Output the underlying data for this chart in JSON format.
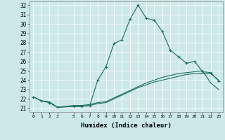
{
  "xlabel": "Humidex (Indice chaleur)",
  "background_color": "#cce8e8",
  "grid_color": "#b8d8d8",
  "line_color": "#1a6e60",
  "xlim": [
    -0.5,
    23.5
  ],
  "ylim": [
    20.6,
    32.4
  ],
  "yticks": [
    21,
    22,
    23,
    24,
    25,
    26,
    27,
    28,
    29,
    30,
    31,
    32
  ],
  "xticks": [
    0,
    1,
    2,
    3,
    5,
    6,
    7,
    8,
    9,
    10,
    11,
    12,
    13,
    14,
    15,
    16,
    17,
    18,
    19,
    20,
    21,
    22,
    23
  ],
  "series1_x": [
    0,
    1,
    2,
    3,
    5,
    6,
    7,
    8,
    9,
    10,
    11,
    12,
    13,
    14,
    15,
    16,
    17,
    18,
    19,
    20,
    21,
    22,
    23
  ],
  "series1_y": [
    22.2,
    21.8,
    21.6,
    21.1,
    21.2,
    21.2,
    21.3,
    24.0,
    25.4,
    27.9,
    28.3,
    30.5,
    32.0,
    30.6,
    30.4,
    29.2,
    27.2,
    26.5,
    25.8,
    26.0,
    24.9,
    24.8,
    23.9
  ],
  "series2_x": [
    0,
    1,
    2,
    3,
    5,
    6,
    7,
    8,
    9,
    10,
    11,
    12,
    13,
    14,
    15,
    16,
    17,
    18,
    19,
    20,
    21,
    22,
    23
  ],
  "series2_y": [
    22.2,
    21.8,
    21.7,
    21.1,
    21.3,
    21.3,
    21.4,
    21.6,
    21.7,
    22.1,
    22.5,
    22.9,
    23.3,
    23.7,
    24.0,
    24.3,
    24.5,
    24.7,
    24.8,
    24.9,
    25.0,
    23.7,
    23.0
  ],
  "series3_x": [
    0,
    1,
    2,
    3,
    5,
    6,
    7,
    8,
    9,
    10,
    11,
    12,
    13,
    14,
    15,
    16,
    17,
    18,
    19,
    20,
    21,
    22,
    23
  ],
  "series3_y": [
    22.2,
    21.8,
    21.6,
    21.1,
    21.2,
    21.2,
    21.3,
    21.5,
    21.6,
    22.0,
    22.4,
    22.8,
    23.2,
    23.5,
    23.8,
    24.0,
    24.2,
    24.4,
    24.6,
    24.7,
    24.7,
    24.7,
    24.0
  ]
}
